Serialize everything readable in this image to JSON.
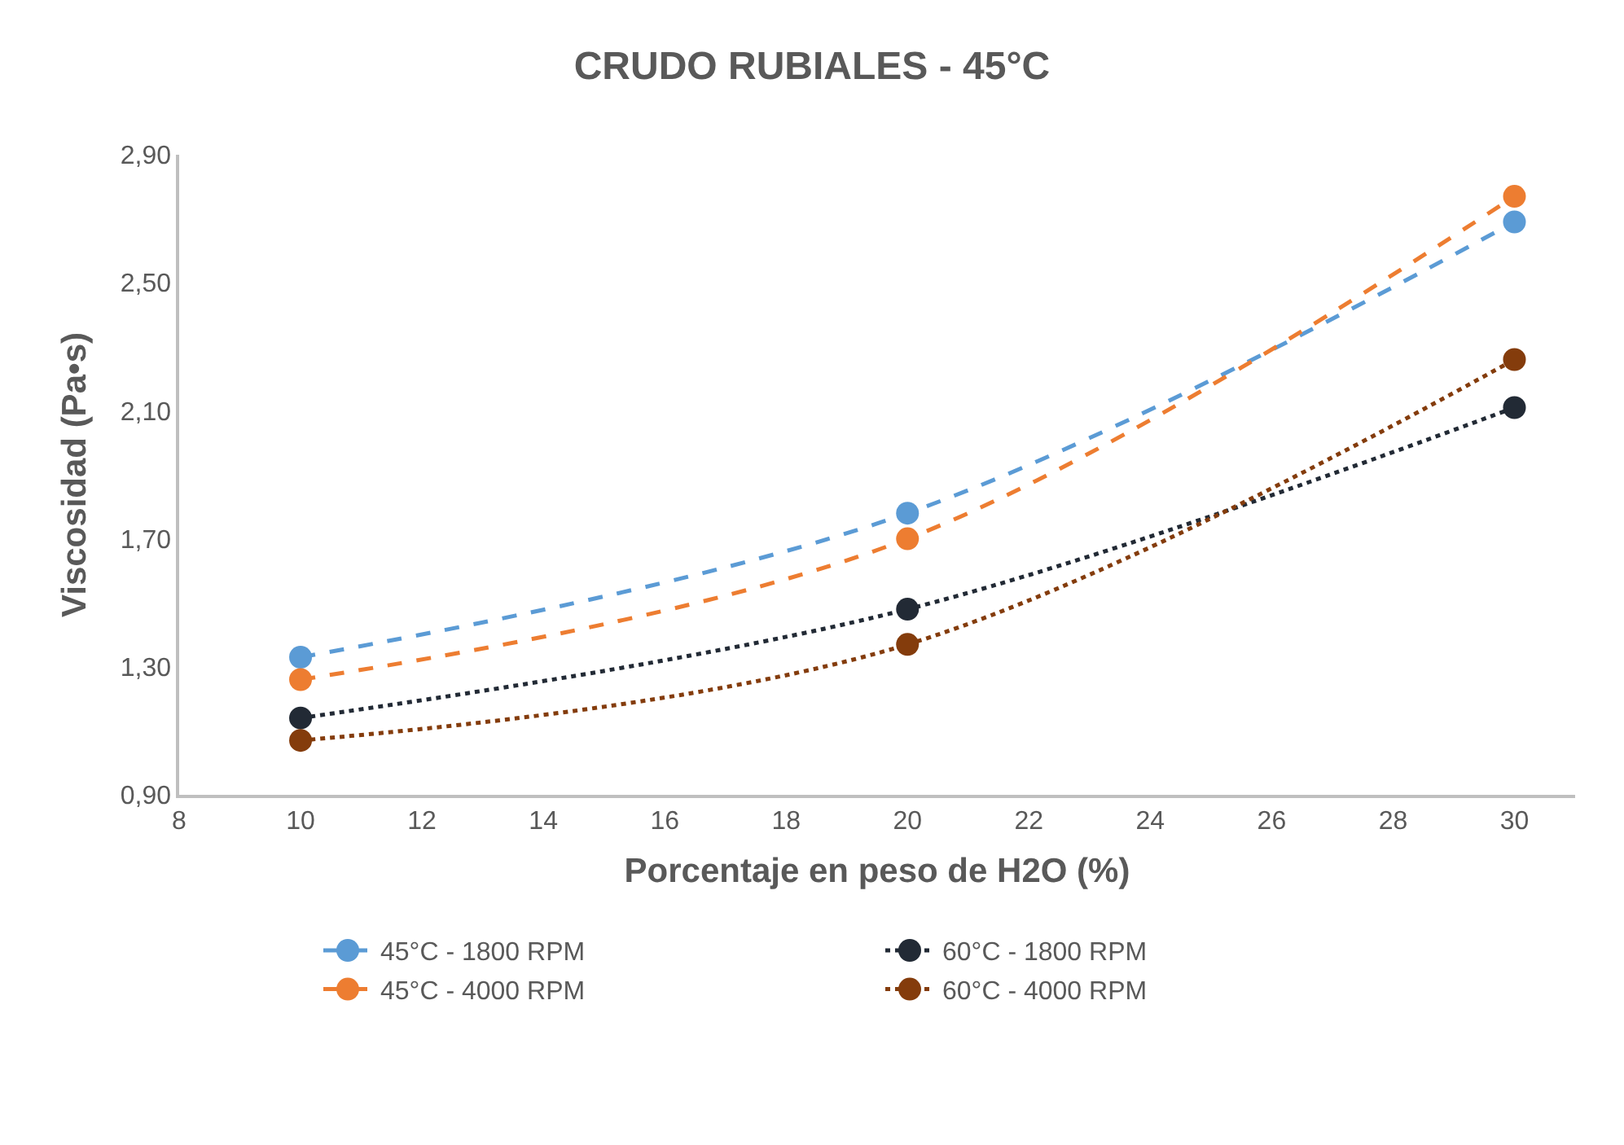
{
  "chart_data": {
    "type": "line",
    "title": "CRUDO RUBIALES - 45°C",
    "xlabel": "Porcentaje en peso de H2O (%)",
    "ylabel": "Viscosidad (Pa•s)",
    "x": [
      10,
      20,
      30
    ],
    "series": [
      {
        "name": "45°C - 1800 RPM",
        "color": "#5b9bd5",
        "line_style": "dashed",
        "values": [
          1.33,
          1.78,
          2.69
        ]
      },
      {
        "name": "60°C - 1800 RPM",
        "color": "#222a35",
        "line_style": "dotted",
        "values": [
          1.14,
          1.48,
          2.11
        ]
      },
      {
        "name": "45°C - 4000 RPM",
        "color": "#ed7d31",
        "line_style": "dashed",
        "values": [
          1.26,
          1.7,
          2.77
        ]
      },
      {
        "name": "60°C - 4000 RPM",
        "color": "#843c0c",
        "line_style": "dotted",
        "values": [
          1.07,
          1.37,
          2.26
        ]
      }
    ],
    "xlim": [
      8,
      31
    ],
    "xticks": [
      8,
      10,
      12,
      14,
      16,
      18,
      20,
      22,
      24,
      26,
      28,
      30
    ],
    "ylim": [
      0.9,
      2.9
    ],
    "yticks": [
      {
        "value": 0.9,
        "label": "0,90"
      },
      {
        "value": 1.3,
        "label": "1,30"
      },
      {
        "value": 1.7,
        "label": "1,70"
      },
      {
        "value": 2.1,
        "label": "2,10"
      },
      {
        "value": 2.5,
        "label": "2,50"
      },
      {
        "value": 2.9,
        "label": "2,90"
      }
    ],
    "grid": false,
    "legend": "bottom",
    "marker": "circle"
  }
}
